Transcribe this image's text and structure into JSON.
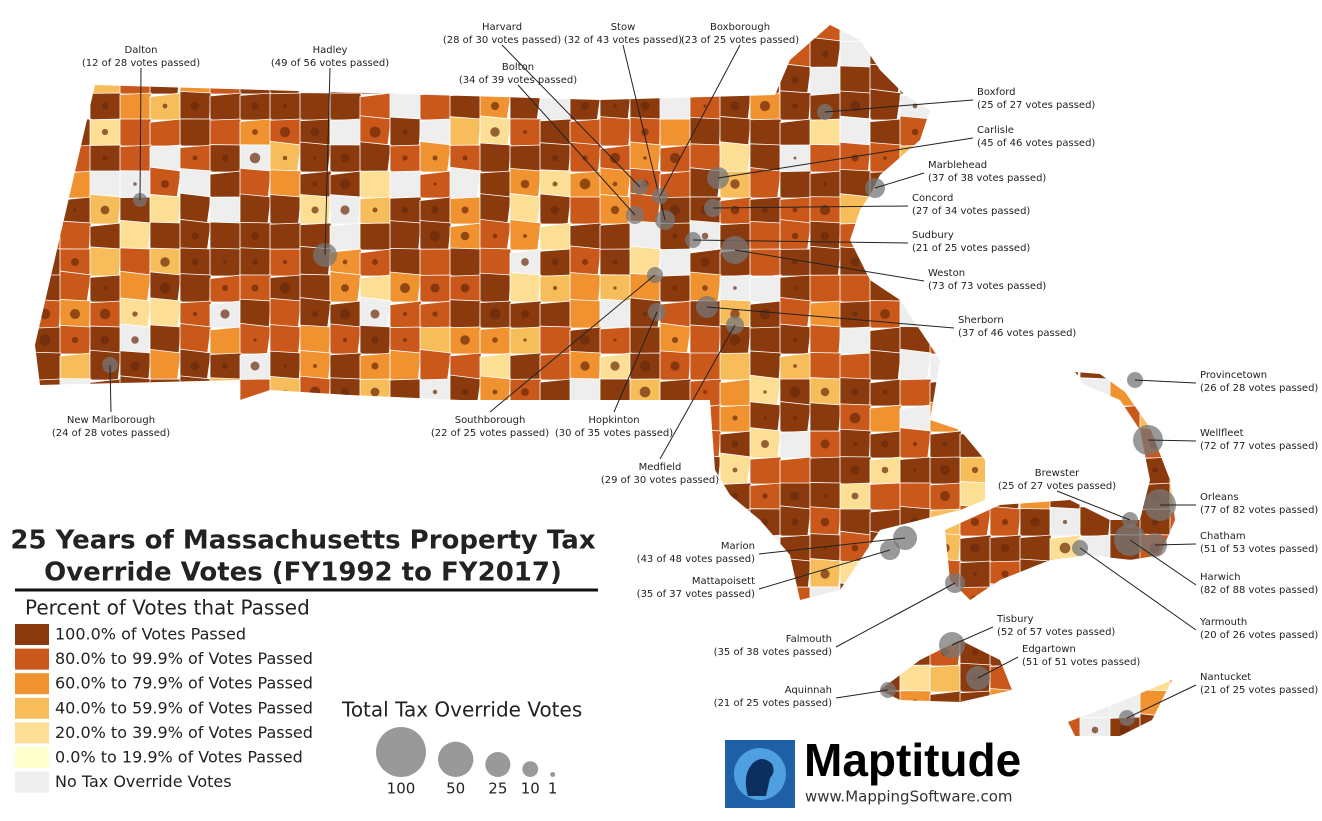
{
  "title_lines": [
    "25 Years of Massachusetts Property Tax",
    "Override Votes (FY1992 to FY2017)"
  ],
  "color_legend": {
    "title": "Percent of Votes that Passed",
    "items": [
      {
        "label": "100.0% of Votes Passed",
        "color": "#8b3a0e"
      },
      {
        "label": "80.0% to 99.9% of Votes Passed",
        "color": "#c9581a"
      },
      {
        "label": "60.0% to 79.9% of Votes Passed",
        "color": "#f0922f"
      },
      {
        "label": "40.0% to 59.9% of Votes Passed",
        "color": "#f8bd5b"
      },
      {
        "label": "20.0% to 39.9% of Votes Passed",
        "color": "#fcdf95"
      },
      {
        "label": "0.0% to 19.9% of Votes Passed",
        "color": "#ffffcc"
      },
      {
        "label": "No Tax Override Votes",
        "color": "#eeeeee"
      }
    ]
  },
  "size_legend": {
    "title": "Total Tax Override Votes",
    "sizes": [
      100,
      50,
      25,
      10,
      1
    ]
  },
  "callouts": [
    {
      "name": "Dalton",
      "votes": "(12 of 28 votes passed)"
    },
    {
      "name": "Hadley",
      "votes": "(49 of 56 votes passed)"
    },
    {
      "name": "Harvard",
      "votes": "(28 of 30 votes passed)"
    },
    {
      "name": "Stow",
      "votes": "(32 of 43 votes passed)"
    },
    {
      "name": "Boxborough",
      "votes": "(23 of 25 votes passed)"
    },
    {
      "name": "Bolton",
      "votes": "(34 of 39 votes passed)"
    },
    {
      "name": "Boxford",
      "votes": "(25 of 27 votes passed)"
    },
    {
      "name": "Carlisle",
      "votes": "(45 of 46 votes passed)"
    },
    {
      "name": "Marblehead",
      "votes": "(37 of 38 votes passed)"
    },
    {
      "name": "Concord",
      "votes": "(27 of 34 votes passed)"
    },
    {
      "name": "Sudbury",
      "votes": "(21 of 25 votes passed)"
    },
    {
      "name": "Weston",
      "votes": "(73 of 73 votes passed)"
    },
    {
      "name": "Sherborn",
      "votes": "(37 of 46 votes passed)"
    },
    {
      "name": "New Marlborough",
      "votes": "(24 of 28 votes passed)"
    },
    {
      "name": "Southborough",
      "votes": "(22 of 25 votes passed)"
    },
    {
      "name": "Hopkinton",
      "votes": "(30 of 35 votes passed)"
    },
    {
      "name": "Medfield",
      "votes": "(29 of 30 votes passed)"
    },
    {
      "name": "Provincetown",
      "votes": "(26 of 28 votes passed)"
    },
    {
      "name": "Wellfleet",
      "votes": "(72 of 77 votes passed)"
    },
    {
      "name": "Brewster",
      "votes": "(25 of 27 votes passed)"
    },
    {
      "name": "Orleans",
      "votes": "(77 of 82 votes passed)"
    },
    {
      "name": "Chatham",
      "votes": "(51 of 53 votes passed)"
    },
    {
      "name": "Harwich",
      "votes": "(82 of 88 votes passed)"
    },
    {
      "name": "Yarmouth",
      "votes": "(20 of 26 votes passed)"
    },
    {
      "name": "Marion",
      "votes": "(43 of 48 votes passed)"
    },
    {
      "name": "Mattapoisett",
      "votes": "(35 of 37 votes passed)"
    },
    {
      "name": "Falmouth",
      "votes": "(35 of 38 votes passed)"
    },
    {
      "name": "Tisbury",
      "votes": "(52 of 57 votes passed)"
    },
    {
      "name": "Edgartown",
      "votes": "(51 of 51 votes passed)"
    },
    {
      "name": "Aquinnah",
      "votes": "(21 of 25 votes passed)"
    },
    {
      "name": "Nantucket",
      "votes": "(21 of 25 votes passed)"
    }
  ],
  "logo": {
    "name": "Maptitude",
    "url": "www.MappingSoftware.com"
  }
}
